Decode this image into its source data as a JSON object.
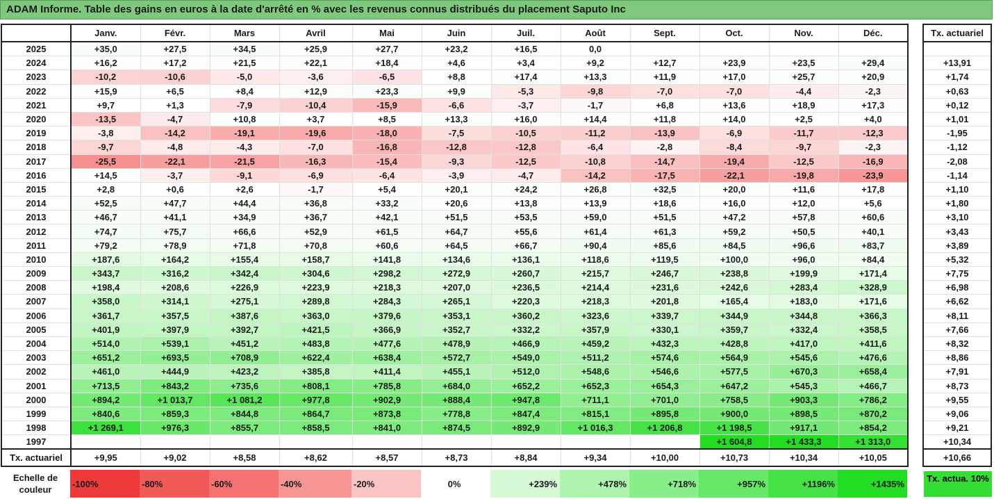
{
  "title": "ADAM Informe. Table des gains en euros à la date d'arrêté en % avec les revenus connus distribués du placement Saputo Inc",
  "months": [
    "Janv.",
    "Févr.",
    "Mars",
    "Avril",
    "Mai",
    "Juin",
    "Juil.",
    "Août",
    "Sept.",
    "Oct.",
    "Nov.",
    "Déc."
  ],
  "tx_header": "Tx. actuariel",
  "rows": [
    {
      "year": "2025",
      "values": [
        "+35,0",
        "+27,5",
        "+34,5",
        "+25,9",
        "+27,7",
        "+23,2",
        "+16,5",
        "0,0",
        "",
        "",
        "",
        ""
      ],
      "tx": ""
    },
    {
      "year": "2024",
      "values": [
        "+16,2",
        "+17,2",
        "+21,5",
        "+22,1",
        "+18,4",
        "+4,6",
        "+3,4",
        "+9,2",
        "+12,7",
        "+23,9",
        "+23,5",
        "+29,4"
      ],
      "tx": "+13,91"
    },
    {
      "year": "2023",
      "values": [
        "-10,2",
        "-10,6",
        "-5,0",
        "-3,6",
        "-6,5",
        "+8,8",
        "+17,4",
        "+13,3",
        "+11,9",
        "+17,0",
        "+25,7",
        "+20,9"
      ],
      "tx": "+1,74"
    },
    {
      "year": "2022",
      "values": [
        "+15,9",
        "+6,5",
        "+8,4",
        "+12,9",
        "+23,3",
        "+9,9",
        "-5,3",
        "-9,8",
        "-7,0",
        "-7,0",
        "-4,4",
        "-2,3"
      ],
      "tx": "+0,63"
    },
    {
      "year": "2021",
      "values": [
        "+9,7",
        "+1,3",
        "-7,9",
        "-10,4",
        "-15,9",
        "-6,6",
        "-3,7",
        "-1,7",
        "+6,8",
        "+13,6",
        "+18,9",
        "+17,3"
      ],
      "tx": "+0,12"
    },
    {
      "year": "2020",
      "values": [
        "-13,5",
        "-4,7",
        "+10,8",
        "+3,7",
        "+8,5",
        "+13,3",
        "+16,0",
        "+14,4",
        "+11,8",
        "+14,0",
        "+2,5",
        "+4,0"
      ],
      "tx": "+1,01"
    },
    {
      "year": "2019",
      "values": [
        "-3,8",
        "-14,2",
        "-19,1",
        "-19,6",
        "-18,0",
        "-7,5",
        "-10,5",
        "-11,2",
        "-13,9",
        "-6,9",
        "-11,7",
        "-12,3"
      ],
      "tx": "-1,95"
    },
    {
      "year": "2018",
      "values": [
        "-9,7",
        "-4,8",
        "-4,3",
        "-7,0",
        "-16,8",
        "-12,8",
        "-12,8",
        "-6,4",
        "-2,8",
        "-8,4",
        "-9,7",
        "-2,3"
      ],
      "tx": "-1,12"
    },
    {
      "year": "2017",
      "values": [
        "-25,5",
        "-22,1",
        "-21,5",
        "-16,3",
        "-15,4",
        "-9,3",
        "-12,5",
        "-10,8",
        "-14,7",
        "-19,4",
        "-12,5",
        "-16,9"
      ],
      "tx": "-2,08"
    },
    {
      "year": "2016",
      "values": [
        "+14,5",
        "-3,7",
        "-9,1",
        "-6,9",
        "-6,4",
        "-3,9",
        "-4,7",
        "-14,2",
        "-17,5",
        "-22,1",
        "-19,8",
        "-23,9"
      ],
      "tx": "-1,14"
    },
    {
      "year": "2015",
      "values": [
        "+2,8",
        "+0,6",
        "+2,6",
        "-1,7",
        "+5,4",
        "+20,1",
        "+24,2",
        "+26,8",
        "+32,5",
        "+20,0",
        "+11,6",
        "+17,8"
      ],
      "tx": "+1,10"
    },
    {
      "year": "2014",
      "values": [
        "+52,5",
        "+47,7",
        "+44,4",
        "+36,8",
        "+33,2",
        "+20,6",
        "+13,8",
        "+13,9",
        "+18,6",
        "+16,0",
        "+12,0",
        "+5,6"
      ],
      "tx": "+1,80"
    },
    {
      "year": "2013",
      "values": [
        "+46,7",
        "+41,1",
        "+34,9",
        "+36,7",
        "+42,1",
        "+51,5",
        "+53,5",
        "+59,0",
        "+51,5",
        "+47,2",
        "+57,8",
        "+60,6"
      ],
      "tx": "+3,10"
    },
    {
      "year": "2012",
      "values": [
        "+74,7",
        "+75,7",
        "+66,6",
        "+52,9",
        "+61,5",
        "+64,7",
        "+55,6",
        "+61,4",
        "+61,3",
        "+59,2",
        "+50,5",
        "+40,1"
      ],
      "tx": "+3,43"
    },
    {
      "year": "2011",
      "values": [
        "+79,2",
        "+78,9",
        "+71,8",
        "+70,8",
        "+60,6",
        "+64,5",
        "+66,7",
        "+90,4",
        "+85,6",
        "+84,5",
        "+96,6",
        "+83,7"
      ],
      "tx": "+3,89"
    },
    {
      "year": "2010",
      "values": [
        "+187,6",
        "+164,2",
        "+155,4",
        "+158,7",
        "+141,8",
        "+134,6",
        "+136,1",
        "+118,6",
        "+119,5",
        "+100,0",
        "+96,0",
        "+84,4"
      ],
      "tx": "+5,32"
    },
    {
      "year": "2009",
      "values": [
        "+343,7",
        "+316,2",
        "+342,4",
        "+304,6",
        "+298,2",
        "+272,9",
        "+260,7",
        "+215,7",
        "+246,7",
        "+238,8",
        "+199,9",
        "+171,4"
      ],
      "tx": "+7,75"
    },
    {
      "year": "2008",
      "values": [
        "+198,4",
        "+208,6",
        "+226,9",
        "+223,9",
        "+218,3",
        "+207,0",
        "+236,5",
        "+214,4",
        "+231,6",
        "+242,6",
        "+283,4",
        "+328,9"
      ],
      "tx": "+6,98"
    },
    {
      "year": "2007",
      "values": [
        "+358,0",
        "+314,1",
        "+275,1",
        "+289,8",
        "+284,3",
        "+265,1",
        "+220,3",
        "+218,3",
        "+201,8",
        "+165,4",
        "+183,0",
        "+171,6"
      ],
      "tx": "+6,62"
    },
    {
      "year": "2006",
      "values": [
        "+361,7",
        "+357,5",
        "+387,6",
        "+363,0",
        "+379,6",
        "+353,1",
        "+360,2",
        "+323,6",
        "+339,7",
        "+344,9",
        "+344,8",
        "+366,3"
      ],
      "tx": "+8,11"
    },
    {
      "year": "2005",
      "values": [
        "+401,9",
        "+397,9",
        "+392,7",
        "+421,5",
        "+366,9",
        "+352,7",
        "+332,2",
        "+357,9",
        "+330,1",
        "+359,7",
        "+332,4",
        "+358,5"
      ],
      "tx": "+7,66"
    },
    {
      "year": "2004",
      "values": [
        "+514,0",
        "+539,1",
        "+451,2",
        "+483,8",
        "+477,6",
        "+478,9",
        "+466,9",
        "+459,2",
        "+432,3",
        "+428,8",
        "+417,0",
        "+411,6"
      ],
      "tx": "+8,32"
    },
    {
      "year": "2003",
      "values": [
        "+651,2",
        "+693,5",
        "+708,9",
        "+622,4",
        "+638,4",
        "+572,7",
        "+549,0",
        "+511,2",
        "+574,6",
        "+564,9",
        "+545,6",
        "+476,6"
      ],
      "tx": "+8,86"
    },
    {
      "year": "2002",
      "values": [
        "+461,0",
        "+444,9",
        "+423,2",
        "+385,8",
        "+411,4",
        "+455,1",
        "+512,0",
        "+548,6",
        "+546,6",
        "+577,5",
        "+670,3",
        "+658,4"
      ],
      "tx": "+7,91"
    },
    {
      "year": "2001",
      "values": [
        "+713,5",
        "+843,2",
        "+735,6",
        "+808,1",
        "+785,8",
        "+684,0",
        "+652,2",
        "+652,3",
        "+654,3",
        "+647,2",
        "+545,3",
        "+466,7"
      ],
      "tx": "+8,73"
    },
    {
      "year": "2000",
      "values": [
        "+894,2",
        "+1 013,7",
        "+1 081,2",
        "+977,8",
        "+902,9",
        "+888,4",
        "+947,8",
        "+711,1",
        "+701,0",
        "+758,5",
        "+903,3",
        "+786,2"
      ],
      "tx": "+9,55"
    },
    {
      "year": "1999",
      "values": [
        "+840,6",
        "+859,3",
        "+844,8",
        "+864,7",
        "+873,8",
        "+778,8",
        "+847,4",
        "+815,1",
        "+895,8",
        "+900,0",
        "+898,5",
        "+870,2"
      ],
      "tx": "+9,06"
    },
    {
      "year": "1998",
      "values": [
        "+1 269,1",
        "+976,3",
        "+855,7",
        "+858,5",
        "+841,0",
        "+874,5",
        "+892,9",
        "+1 016,3",
        "+1 206,8",
        "+1 198,5",
        "+917,1",
        "+854,2"
      ],
      "tx": "+9,21"
    },
    {
      "year": "1997",
      "values": [
        "",
        "",
        "",
        "",
        "",
        "",
        "",
        "",
        "",
        "+1 604,8",
        "+1 433,3",
        "+1 313,0"
      ],
      "tx": "+10,34"
    }
  ],
  "footer": {
    "label": "Tx. actuariel",
    "values": [
      "+9,95",
      "+9,02",
      "+8,58",
      "+8,62",
      "+8,57",
      "+8,73",
      "+8,84",
      "+9,34",
      "+10,00",
      "+10,73",
      "+10,34",
      "+10,05"
    ],
    "tx": "+10,66"
  },
  "scale": {
    "label": "Echelle de couleur",
    "items": [
      {
        "text": "-100%",
        "color": "#ef3a3a",
        "align": "left"
      },
      {
        "text": "-80%",
        "color": "#f25a5a",
        "align": "left"
      },
      {
        "text": "-60%",
        "color": "#f47272",
        "align": "left"
      },
      {
        "text": "-40%",
        "color": "#f79494",
        "align": "left"
      },
      {
        "text": "-20%",
        "color": "#fbc5c5",
        "align": "left"
      },
      {
        "text": "0%",
        "color": "#ffffff",
        "align": "mid"
      },
      {
        "text": "+239%",
        "color": "#d6fad6",
        "align": "right"
      },
      {
        "text": "+478%",
        "color": "#aef3ae",
        "align": "right"
      },
      {
        "text": "+718%",
        "color": "#8aee8a",
        "align": "right"
      },
      {
        "text": "+957%",
        "color": "#66e866",
        "align": "right"
      },
      {
        "text": "+1196%",
        "color": "#44e244",
        "align": "right"
      },
      {
        "text": "+1435%",
        "color": "#22dd22",
        "align": "right"
      }
    ],
    "tx_label": "Tx. actua. 10%",
    "tx_color": "#33dd33"
  }
}
